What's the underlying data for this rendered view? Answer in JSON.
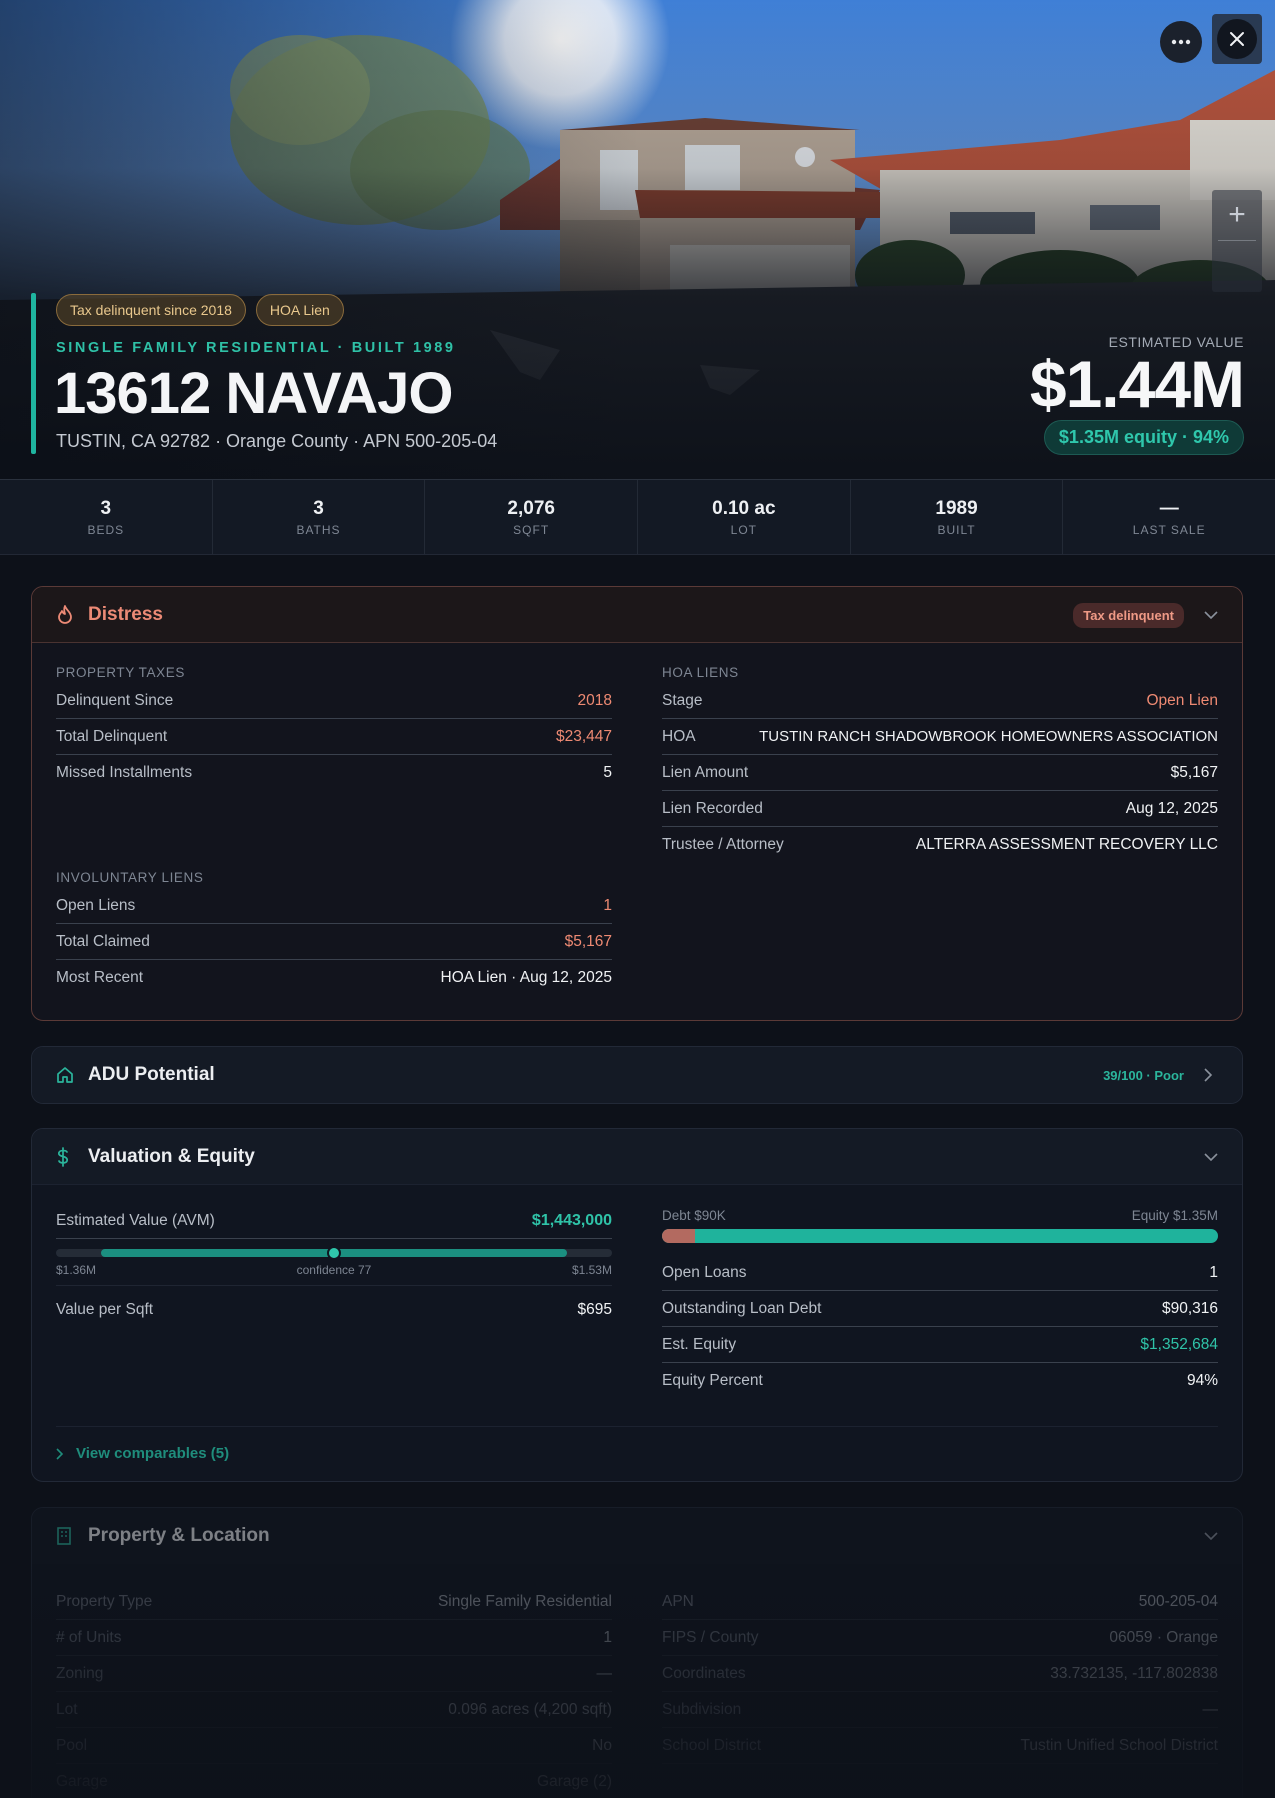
{
  "hero": {
    "tags": [
      "Tax delinquent since 2018",
      "HOA Lien"
    ],
    "subtitle": "SINGLE FAMILY RESIDENTIAL · BUILT 1989",
    "title": "13612 NAVAJO",
    "address": "TUSTIN, CA 92782 · Orange County · APN 500-205-04",
    "estimated_label": "ESTIMATED VALUE",
    "estimated_value": "$1.44M",
    "equity_pill": "$1.35M equity · 94%",
    "zoom_in": "+",
    "icons": {
      "more": "more-horizontal-icon",
      "close": "close-icon"
    }
  },
  "stats": [
    {
      "value": "3",
      "label": "BEDS"
    },
    {
      "value": "3",
      "label": "BATHS"
    },
    {
      "value": "2,076",
      "label": "SQFT"
    },
    {
      "value": "0.10 ac",
      "label": "LOT"
    },
    {
      "value": "1989",
      "label": "BUILT"
    },
    {
      "value": "—",
      "label": "LAST SALE"
    }
  ],
  "distress": {
    "title": "Distress",
    "badge": "Tax delinquent",
    "property_taxes": {
      "label": "PROPERTY TAXES",
      "rows": [
        {
          "k": "Delinquent Since",
          "v": "2018"
        },
        {
          "k": "Total Delinquent",
          "v": "$23,447"
        },
        {
          "k": "Missed Installments",
          "v": "5"
        }
      ]
    },
    "involuntary_liens": {
      "label": "INVOLUNTARY LIENS",
      "rows": [
        {
          "k": "Open Liens",
          "v": "1"
        },
        {
          "k": "Total Claimed",
          "v": "$5,167"
        },
        {
          "k": "Most Recent",
          "v": "HOA Lien · Aug 12, 2025"
        }
      ]
    },
    "hoa_liens": {
      "label": "HOA LIENS",
      "rows": [
        {
          "k": "Stage",
          "v": "Open Lien"
        },
        {
          "k": "HOA",
          "v": "TUSTIN RANCH SHADOWBROOK HOMEOWNERS ASSOCIATION"
        },
        {
          "k": "Lien Amount",
          "v": "$5,167"
        },
        {
          "k": "Lien Recorded",
          "v": "Aug 12, 2025"
        },
        {
          "k": "Trustee / Attorney",
          "v": "ALTERRA ASSESSMENT RECOVERY LLC"
        }
      ]
    }
  },
  "adu": {
    "title": "ADU Potential",
    "score": "39/100 · Poor"
  },
  "valuation": {
    "title": "Valuation & Equity",
    "avm_label": "Estimated Value (AVM)",
    "avm_value": "$1,443,000",
    "range_low": "$1.36M",
    "range_high": "$1.53M",
    "confidence": "confidence 77",
    "value_per_sqft_label": "Value per Sqft",
    "value_per_sqft": "$695",
    "debt_label": "Debt $90K",
    "equity_label": "Equity $1.35M",
    "debt_fraction": 0.06,
    "rows": [
      {
        "k": "Open Loans",
        "v": "1"
      },
      {
        "k": "Outstanding Loan Debt",
        "v": "$90,316"
      },
      {
        "k": "Est. Equity",
        "v": "$1,352,684"
      },
      {
        "k": "Equity Percent",
        "v": "94%"
      }
    ],
    "comparables": "View comparables (5)"
  },
  "property": {
    "title": "Property & Location",
    "left_rows": [
      {
        "k": "Property Type",
        "v": "Single Family Residential"
      },
      {
        "k": "# of Units",
        "v": "1"
      },
      {
        "k": "Zoning",
        "v": "—"
      },
      {
        "k": "Lot",
        "v": "0.096 acres (4,200 sqft)"
      },
      {
        "k": "Pool",
        "v": "No"
      },
      {
        "k": "Garage",
        "v": "Garage (2)"
      }
    ],
    "right_rows": [
      {
        "k": "APN",
        "v": "500-205-04"
      },
      {
        "k": "FIPS / County",
        "v": "06059 · Orange"
      },
      {
        "k": "Coordinates",
        "v": "33.732135, -117.802838"
      },
      {
        "k": "Subdivision",
        "v": "—"
      },
      {
        "k": "School District",
        "v": "Tustin Unified School District"
      }
    ]
  }
}
